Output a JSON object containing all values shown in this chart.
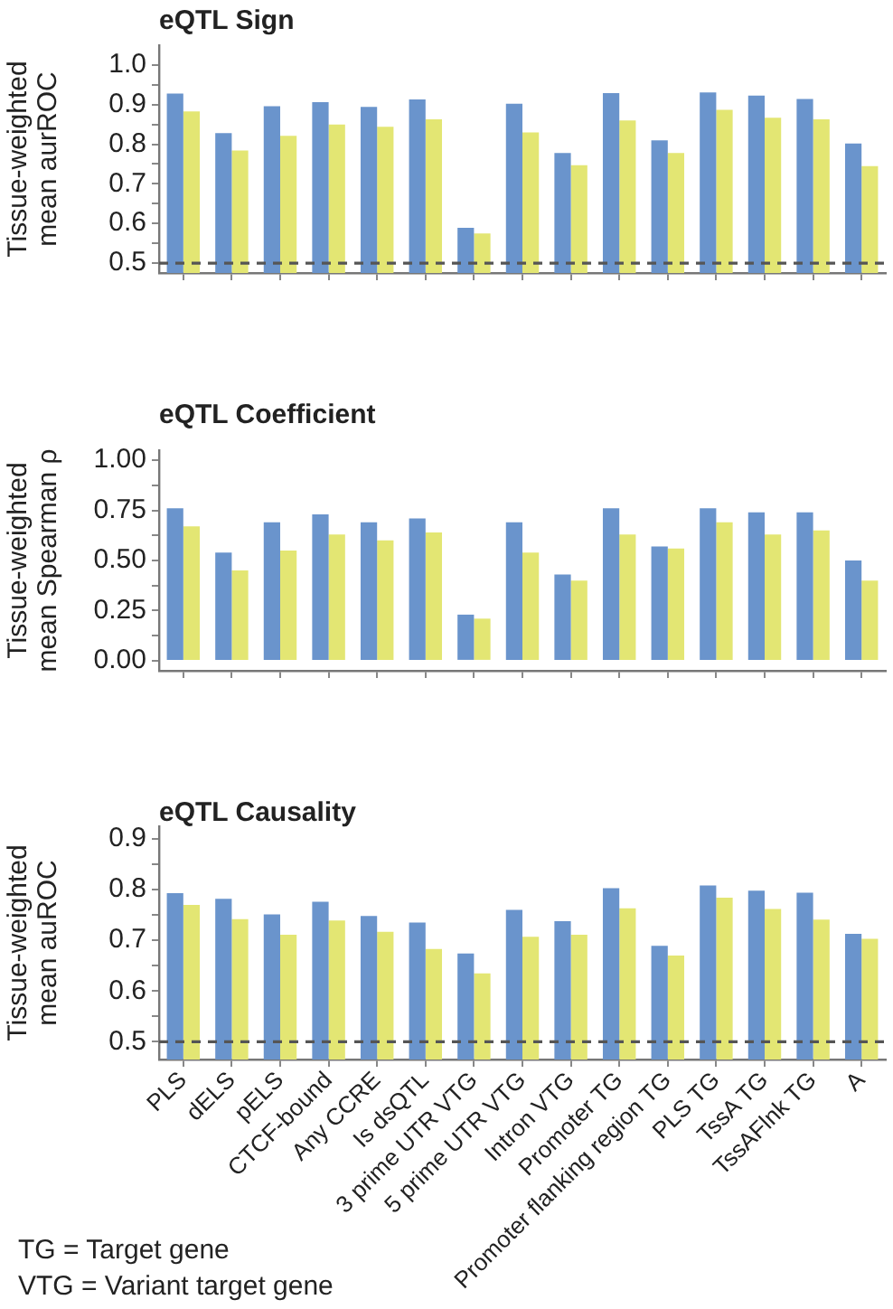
{
  "chart_data": [
    {
      "type": "bar",
      "title": "eQTL Sign",
      "ylabel": "Tissue-weighted\nmean aurROC",
      "categories": [
        null,
        null,
        null,
        null,
        null,
        null,
        null,
        null,
        null,
        null,
        null,
        null,
        null,
        null,
        null
      ],
      "series": [
        {
          "color": "#6a94cc",
          "values": [
            0.928,
            0.828,
            0.896,
            0.906,
            0.894,
            0.913,
            0.589,
            0.902,
            0.778,
            0.929,
            0.81,
            0.931,
            0.923,
            0.914,
            0.802
          ]
        },
        {
          "color": "#e3e673",
          "values": [
            0.883,
            0.784,
            0.821,
            0.85,
            0.844,
            0.863,
            0.575,
            0.83,
            0.747,
            0.86,
            0.778,
            0.887,
            0.867,
            0.863,
            0.745
          ]
        }
      ],
      "ylim": [
        0.475,
        1.05
      ],
      "yticks": [
        0.5,
        {
          "value": 0.55,
          "label": null
        },
        0.6,
        {
          "value": 0.65,
          "label": null
        },
        0.7,
        {
          "value": 0.75,
          "label": null
        },
        0.8,
        {
          "value": 0.85,
          "label": null
        },
        0.9,
        {
          "value": 0.95,
          "label": null
        },
        {
          "value": 1,
          "label": "1.0"
        }
      ],
      "tick_labels": "y",
      "ref_lines": [
        {
          "axis": "y",
          "value": 0.5,
          "color": "#555555",
          "line_style": "dashed"
        }
      ]
    },
    {
      "type": "bar",
      "title": "eQTL Coefficient",
      "ylabel": "Tissue-weighted\nmean Spearman ρ",
      "categories": [
        null,
        null,
        null,
        null,
        null,
        null,
        null,
        null,
        null,
        null,
        null,
        null,
        null,
        null,
        null
      ],
      "series": [
        {
          "color": "#6a94cc",
          "values": [
            0.76,
            0.54,
            0.69,
            0.73,
            0.69,
            0.71,
            0.23,
            0.69,
            0.43,
            0.76,
            0.57,
            0.76,
            0.74,
            0.74,
            0.5
          ]
        },
        {
          "color": "#e3e673",
          "values": [
            0.67,
            0.45,
            0.55,
            0.63,
            0.6,
            0.64,
            0.21,
            0.54,
            0.4,
            0.63,
            0.56,
            0.69,
            0.63,
            0.65,
            0.4
          ]
        }
      ],
      "ylim": [
        -0.05,
        1.05
      ],
      "yticks": [
        {
          "value": 0,
          "label": "0.00"
        },
        {
          "value": 0.125,
          "label": null
        },
        0.25,
        {
          "value": 0.375,
          "label": null
        },
        {
          "value": 0.5,
          "label": "0.50"
        },
        {
          "value": 0.625,
          "label": null
        },
        0.75,
        {
          "value": 0.875,
          "label": null
        },
        {
          "value": 1,
          "label": "1.00"
        }
      ],
      "tick_labels": "y"
    },
    {
      "type": "bar",
      "title": "eQTL Causality",
      "ylabel": "Tissue-weighted\nmean auROC",
      "categories": [
        "PLS",
        "dELS",
        "pELS",
        "CTCF-bound",
        "Any CCRE",
        "Is dsQTL",
        "3 prime UTR VTG",
        "5 prime UTR VTG",
        "Intron VTG",
        "Promoter TG",
        "Promoter flanking region TG",
        "PLS TG",
        "TssA TG",
        "TssAFlnk TG",
        "A"
      ],
      "series": [
        {
          "color": "#6a94cc",
          "values": [
            0.793,
            0.782,
            0.751,
            0.776,
            0.748,
            0.735,
            0.674,
            0.76,
            0.738,
            0.803,
            0.689,
            0.808,
            0.798,
            0.794,
            0.713
          ]
        },
        {
          "color": "#e3e673",
          "values": [
            0.77,
            0.742,
            0.711,
            0.739,
            0.717,
            0.683,
            0.635,
            0.707,
            0.711,
            0.763,
            0.67,
            0.784,
            0.762,
            0.741,
            0.703
          ]
        }
      ],
      "ylim": [
        0.465,
        0.925
      ],
      "yticks": [
        0.5,
        {
          "value": 0.55,
          "label": null
        },
        0.6,
        {
          "value": 0.65,
          "label": null
        },
        0.7,
        {
          "value": 0.75,
          "label": null
        },
        0.8,
        {
          "value": 0.85,
          "label": null
        },
        0.9
      ],
      "ref_lines": [
        {
          "axis": "y",
          "value": 0.5,
          "color": "#555555",
          "line_style": "dashed"
        }
      ],
      "annotations": [
        "TG = Target gene",
        "VTG = Variant target gene"
      ]
    }
  ]
}
